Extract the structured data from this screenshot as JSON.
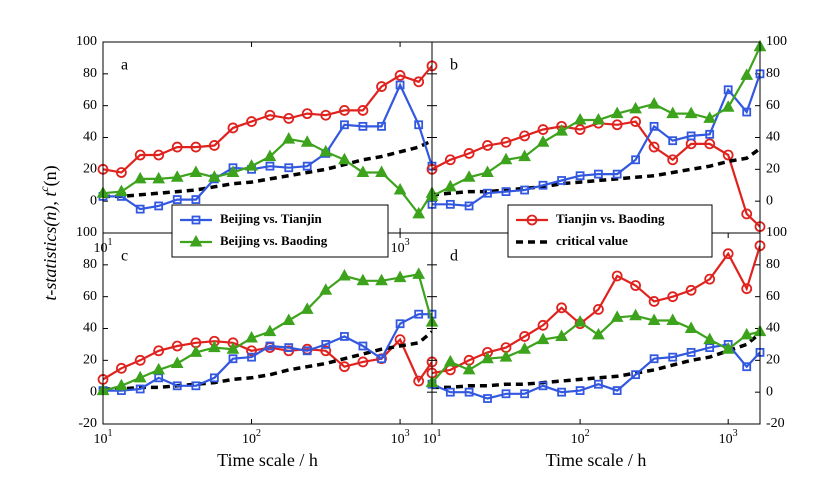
{
  "ylabel": "t-statistics(n), t",
  "ylabel_sup": "c",
  "ylabel_end": "(n)",
  "chart_data": [
    {
      "type": "line",
      "label": "a",
      "xlim": [
        10,
        1640
      ],
      "xticks": [
        {
          "value": 10,
          "label": "10^1"
        },
        {
          "value": 100,
          "label": "10^2"
        },
        {
          "value": 1000,
          "label": "10^3"
        }
      ],
      "ylim": [
        -20,
        100
      ],
      "yticks": [
        0,
        20,
        40,
        60,
        80,
        100
      ],
      "yaxis": "left",
      "legend": "bottom",
      "x": [
        10,
        13.3,
        17.8,
        23.7,
        31.6,
        42.2,
        56.2,
        75,
        100,
        133,
        178,
        237,
        316,
        422,
        562,
        750,
        1000,
        1334,
        1640
      ],
      "series": [
        {
          "color": "#e0221e",
          "marker": "circle",
          "values": [
            20,
            18,
            29,
            29,
            34,
            34,
            35,
            46,
            50,
            54,
            52,
            55,
            54,
            57,
            57,
            72,
            79,
            75,
            85
          ]
        },
        {
          "color": "#000000",
          "marker": "dash",
          "values": [
            3,
            3,
            4,
            5,
            6,
            7,
            9,
            11,
            12,
            14,
            16,
            18,
            20,
            23,
            26,
            28,
            31,
            34,
            38
          ]
        },
        {
          "name": "Beijing vs. Tianjin",
          "color": "#3358e0",
          "marker": "square",
          "values": [
            3,
            3,
            -5,
            -3,
            1,
            1,
            14,
            21,
            20,
            22,
            21,
            22,
            30,
            48,
            47,
            47,
            73,
            48,
            22
          ]
        },
        {
          "name": "Beijing vs. Baoding",
          "color": "#3da31c",
          "marker": "triangle",
          "values": [
            5,
            6,
            14,
            14,
            15,
            18,
            15,
            18,
            22,
            28,
            39,
            37,
            31,
            26,
            18,
            18,
            7,
            -8,
            5
          ]
        }
      ]
    },
    {
      "type": "line",
      "label": "b",
      "xlim": [
        10,
        1640
      ],
      "xticks": [],
      "ylim": [
        -20,
        100
      ],
      "yticks": [
        0,
        20,
        40,
        60,
        80,
        100
      ],
      "yaxis": "right",
      "legend": "bottom",
      "x": [
        10,
        13.3,
        17.8,
        23.7,
        31.6,
        42.2,
        56.2,
        75,
        100,
        133,
        178,
        237,
        316,
        422,
        562,
        750,
        1000,
        1334,
        1640
      ],
      "series": [
        {
          "name": "Tianjin vs. Baoding",
          "color": "#e0221e",
          "marker": "circle",
          "values": [
            20,
            26,
            30,
            35,
            37,
            41,
            45,
            47,
            45,
            49,
            48,
            50,
            34,
            26,
            36,
            36,
            29,
            -8,
            -16
          ]
        },
        {
          "name": "critical value",
          "color": "#000000",
          "marker": "dash",
          "values": [
            4,
            5,
            6,
            6,
            7,
            8,
            9,
            11,
            12,
            13,
            14,
            15,
            16,
            18,
            20,
            22,
            25,
            27,
            33
          ]
        },
        {
          "color": "#3358e0",
          "marker": "square",
          "values": [
            -2,
            -2,
            -3,
            5,
            6,
            7,
            10,
            13,
            16,
            17,
            17,
            26,
            47,
            38,
            41,
            42,
            70,
            56,
            80
          ]
        },
        {
          "color": "#3da31c",
          "marker": "triangle",
          "values": [
            3,
            9,
            15,
            18,
            26,
            28,
            37,
            44,
            51,
            51,
            55,
            58,
            61,
            55,
            55,
            52,
            59,
            79,
            97
          ]
        }
      ]
    },
    {
      "type": "line",
      "label": "c",
      "xlabel": "Time scale / h",
      "xlim": [
        10,
        1640
      ],
      "xticks": [
        {
          "value": 10,
          "label": "10^1"
        },
        {
          "value": 100,
          "label": "10^2"
        },
        {
          "value": 1000,
          "label": "10^3"
        }
      ],
      "ylim": [
        -20,
        100
      ],
      "yticks": [
        -20,
        0,
        20,
        40,
        60,
        80,
        100
      ],
      "yaxis": "left",
      "x": [
        10,
        13.3,
        17.8,
        23.7,
        31.6,
        42.2,
        56.2,
        75,
        100,
        133,
        178,
        237,
        316,
        422,
        562,
        750,
        1000,
        1334,
        1640
      ],
      "series": [
        {
          "color": "#e0221e",
          "marker": "circle",
          "values": [
            8,
            15,
            20,
            26,
            29,
            31,
            32,
            31,
            26,
            28,
            26,
            27,
            26,
            16,
            19,
            21,
            33,
            7,
            19
          ]
        },
        {
          "color": "#000000",
          "marker": "dash",
          "values": [
            2,
            2,
            3,
            3,
            4,
            5,
            6,
            8,
            9,
            11,
            14,
            16,
            18,
            21,
            24,
            27,
            29,
            31,
            38
          ]
        },
        {
          "color": "#3358e0",
          "marker": "square",
          "values": [
            1,
            1,
            2,
            9,
            4,
            4,
            9,
            21,
            22,
            29,
            28,
            26,
            30,
            35,
            29,
            21,
            43,
            49,
            49
          ]
        },
        {
          "color": "#3da31c",
          "marker": "triangle",
          "values": [
            1,
            4,
            9,
            14,
            18,
            25,
            28,
            27,
            34,
            38,
            45,
            52,
            64,
            73,
            70,
            70,
            72,
            74,
            44
          ]
        }
      ]
    },
    {
      "type": "line",
      "label": "d",
      "xlabel": "Time scale / h",
      "xlim": [
        10,
        1640
      ],
      "xticks": [
        {
          "value": 10,
          "label": "10^1"
        },
        {
          "value": 100,
          "label": "10^2"
        },
        {
          "value": 1000,
          "label": "10^3"
        }
      ],
      "ylim": [
        -20,
        100
      ],
      "yticks": [
        -20,
        0,
        20,
        40,
        60,
        80,
        100
      ],
      "yaxis": "right",
      "x": [
        10,
        13.3,
        17.8,
        23.7,
        31.6,
        42.2,
        56.2,
        75,
        100,
        133,
        178,
        237,
        316,
        422,
        562,
        750,
        1000,
        1334,
        1640
      ],
      "series": [
        {
          "color": "#e0221e",
          "marker": "circle",
          "values": [
            12,
            14,
            20,
            25,
            28,
            35,
            42,
            53,
            43,
            52,
            73,
            67,
            57,
            60,
            64,
            71,
            87,
            65,
            92
          ]
        },
        {
          "color": "#000000",
          "marker": "dash",
          "values": [
            3,
            3,
            4,
            4,
            5,
            5,
            6,
            7,
            8,
            9,
            10,
            12,
            14,
            17,
            20,
            22,
            26,
            30,
            37
          ]
        },
        {
          "color": "#3358e0",
          "marker": "square",
          "values": [
            5,
            0,
            0,
            -4,
            -1,
            -1,
            4,
            0,
            1,
            5,
            1,
            11,
            21,
            22,
            25,
            28,
            30,
            16,
            25
          ]
        },
        {
          "color": "#3da31c",
          "marker": "triangle",
          "values": [
            6,
            19,
            14,
            21,
            22,
            27,
            33,
            35,
            44,
            36,
            47,
            48,
            45,
            45,
            40,
            33,
            27,
            36,
            38
          ]
        }
      ]
    }
  ]
}
